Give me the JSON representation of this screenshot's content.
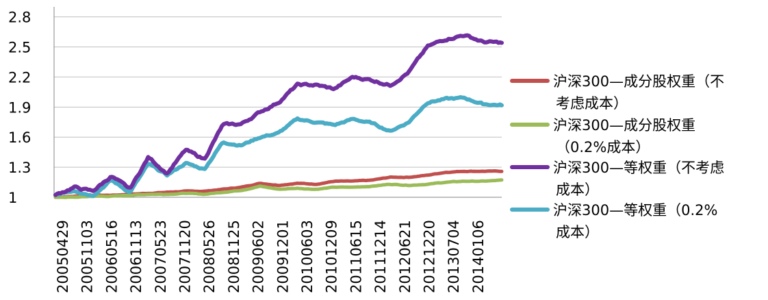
{
  "chart_data": {
    "type": "line",
    "title": "",
    "xlabel": "",
    "ylabel": "",
    "ylim": [
      1.0,
      2.9
    ],
    "yticks": [
      "1",
      "1.3",
      "1.6",
      "1.9",
      "2.2",
      "2.5",
      "2.8"
    ],
    "ytick_values": [
      1.0,
      1.3,
      1.6,
      1.9,
      2.2,
      2.5,
      2.8
    ],
    "grid": true,
    "legend_position": "right",
    "x_tick_labels": [
      "20050429",
      "20051103",
      "20060516",
      "20061113",
      "20070523",
      "20071120",
      "20080526",
      "20081125",
      "20090602",
      "20091201",
      "20100603",
      "20101209",
      "20110615",
      "20111214",
      "20120621",
      "20121220",
      "20130704",
      "20140106"
    ],
    "series": [
      {
        "name": "沪深300—成分股权重（不考虑成本）",
        "legend_lines": [
          "沪深300—成分股权重（不",
          "考虑成本）"
        ],
        "color": "#C0504D",
        "values": [
          1.0,
          1.01,
          1.02,
          1.02,
          1.03,
          1.04,
          1.05,
          1.06,
          1.06,
          1.08,
          1.1,
          1.14,
          1.12,
          1.14,
          1.13,
          1.16,
          1.16,
          1.17,
          1.2,
          1.2,
          1.22,
          1.25,
          1.26,
          1.26,
          1.26
        ]
      },
      {
        "name": "沪深300—成分股权重（0.2%成本）",
        "legend_lines": [
          "沪深300—成分股权重",
          "（0.2%成本）"
        ],
        "color": "#9BBB59",
        "values": [
          1.0,
          1.0,
          1.01,
          1.01,
          1.02,
          1.03,
          1.03,
          1.04,
          1.03,
          1.05,
          1.07,
          1.11,
          1.08,
          1.09,
          1.08,
          1.1,
          1.1,
          1.11,
          1.13,
          1.12,
          1.13,
          1.15,
          1.16,
          1.16,
          1.17
        ]
      },
      {
        "name": "沪深300—等权重（不考虑成本）",
        "legend_lines": [
          "沪深300—等权重（不考虑",
          "成本）"
        ],
        "color": "#7030A0",
        "values": [
          1.02,
          1.1,
          1.06,
          1.21,
          1.08,
          1.4,
          1.24,
          1.47,
          1.38,
          1.72,
          1.73,
          1.85,
          1.95,
          2.12,
          2.12,
          2.08,
          2.2,
          2.17,
          2.12,
          2.25,
          2.5,
          2.58,
          2.62,
          2.55,
          2.54
        ]
      },
      {
        "name": "沪深300—等权重（0.2%成本）",
        "legend_lines": [
          "沪深300—等权重（0.2%",
          "成本）"
        ],
        "color": "#4BACC6",
        "values": [
          1.02,
          1.07,
          1.02,
          1.17,
          1.05,
          1.33,
          1.22,
          1.34,
          1.28,
          1.55,
          1.52,
          1.6,
          1.64,
          1.78,
          1.75,
          1.72,
          1.78,
          1.74,
          1.66,
          1.75,
          1.95,
          1.98,
          1.99,
          1.93,
          1.92
        ]
      }
    ]
  }
}
